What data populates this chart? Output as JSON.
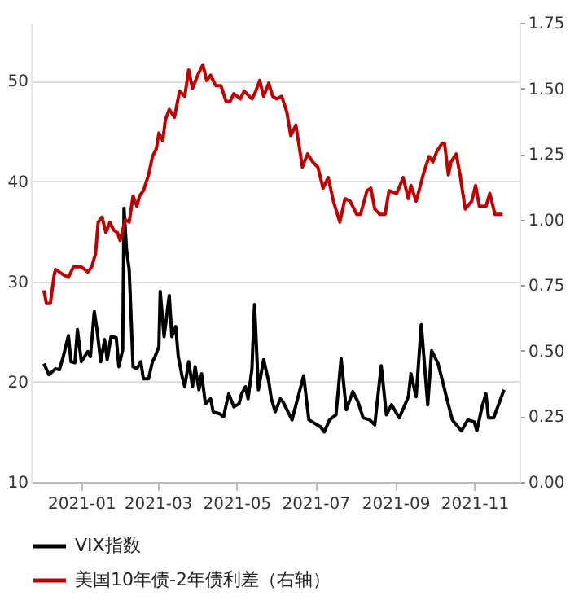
{
  "chart_data": {
    "type": "line",
    "legend": "bottom",
    "grid": "y",
    "line_style": "solid",
    "xlim": [
      "2020-11-23",
      "2021-12-06"
    ],
    "xticks": [
      "2021-01",
      "2021-03",
      "2021-05",
      "2021-07",
      "2021-09",
      "2021-11"
    ],
    "ylim": [
      10,
      55.8
    ],
    "yticks": [
      10,
      20,
      30,
      40,
      50
    ],
    "y2lim": [
      0,
      1.75
    ],
    "y2ticks": [
      {
        "value": 0,
        "label": "0.00"
      },
      0.25,
      {
        "value": 0.5,
        "label": "0.50"
      },
      0.75,
      {
        "value": 1,
        "label": "1.00"
      },
      1.25,
      {
        "value": 1.5,
        "label": "1.50"
      },
      1.75
    ],
    "series": [
      {
        "name": "VIX指数",
        "color": "#000000",
        "x": [
          "2020-12-03",
          "2020-12-07",
          "2020-12-12",
          "2020-12-15",
          "2020-12-18",
          "2020-12-22",
          "2020-12-24",
          "2020-12-27",
          "2020-12-29",
          "2021-01-01",
          "2021-01-06",
          "2021-01-08",
          "2021-01-11",
          "2021-01-13",
          "2021-01-16",
          "2021-01-19",
          "2021-01-21",
          "2021-01-24",
          "2021-01-28",
          "2021-01-30",
          "2021-02-02",
          "2021-02-03",
          "2021-02-05",
          "2021-02-07",
          "2021-02-10",
          "2021-02-13",
          "2021-02-16",
          "2021-02-18",
          "2021-02-22",
          "2021-02-25",
          "2021-02-27",
          "2021-03-02",
          "2021-03-03",
          "2021-03-06",
          "2021-03-10",
          "2021-03-12",
          "2021-03-15",
          "2021-03-17",
          "2021-03-20",
          "2021-03-22",
          "2021-03-25",
          "2021-03-28",
          "2021-03-30",
          "2021-04-02",
          "2021-04-04",
          "2021-04-07",
          "2021-04-11",
          "2021-04-13",
          "2021-04-18",
          "2021-04-21",
          "2021-04-25",
          "2021-04-29",
          "2021-05-03",
          "2021-05-05",
          "2021-05-08",
          "2021-05-10",
          "2021-05-13",
          "2021-05-15",
          "2021-05-18",
          "2021-05-22",
          "2021-05-26",
          "2021-05-28",
          "2021-05-31",
          "2021-06-04",
          "2021-06-06",
          "2021-06-13",
          "2021-06-22",
          "2021-06-26",
          "2021-07-05",
          "2021-07-08",
          "2021-07-12",
          "2021-07-17",
          "2021-07-21",
          "2021-07-25",
          "2021-07-30",
          "2021-08-03",
          "2021-08-07",
          "2021-08-12",
          "2021-08-16",
          "2021-08-21",
          "2021-08-25",
          "2021-08-29",
          "2021-09-04",
          "2021-09-11",
          "2021-09-13",
          "2021-09-17",
          "2021-09-21",
          "2021-09-26",
          "2021-09-29",
          "2021-10-04",
          "2021-10-07",
          "2021-10-11",
          "2021-10-15",
          "2021-10-22",
          "2021-10-27",
          "2021-11-01",
          "2021-11-03",
          "2021-11-07",
          "2021-11-10",
          "2021-11-12",
          "2021-11-16",
          "2021-11-24"
        ],
        "values": [
          21.8,
          20.7,
          21.3,
          21.2,
          22.5,
          24.6,
          22,
          21.9,
          25.2,
          22,
          23,
          22.5,
          27,
          25.3,
          22,
          24.2,
          22.2,
          24.5,
          24.4,
          21.5,
          23.2,
          37.3,
          33.1,
          31.2,
          21.5,
          21.3,
          22,
          20.3,
          20.3,
          22,
          22.5,
          23.5,
          29,
          24.5,
          28.6,
          24.5,
          25.5,
          22.5,
          20.5,
          19.5,
          22,
          19.5,
          21.5,
          19.2,
          20.8,
          17.8,
          18.3,
          17,
          16.8,
          16.5,
          18.8,
          17.5,
          17.8,
          18.8,
          19.5,
          18.3,
          21.3,
          27.7,
          19.2,
          22.2,
          20,
          18.3,
          17,
          18.3,
          18,
          16.2,
          20.6,
          16.2,
          15.5,
          15,
          16.2,
          16.7,
          22.3,
          17.2,
          19,
          18,
          16.4,
          16.2,
          15.7,
          21.6,
          16.7,
          17.7,
          16.4,
          18.5,
          20.8,
          18.5,
          25.7,
          17.7,
          23.1,
          21.8,
          20.3,
          18.2,
          16.2,
          15.1,
          16.2,
          16,
          15.1,
          17.5,
          18.8,
          16.4,
          16.4,
          19.2
        ]
      },
      {
        "name": "美国10年债-2年债利差（右轴）",
        "color": "#c00000",
        "axis": "y2",
        "x": [
          "2020-12-03",
          "2020-12-05",
          "2020-12-08",
          "2020-12-11",
          "2020-12-12",
          "2020-12-18",
          "2020-12-22",
          "2020-12-26",
          "2021-01-01",
          "2021-01-06",
          "2021-01-09",
          "2021-01-12",
          "2021-01-14",
          "2021-01-17",
          "2021-01-20",
          "2021-01-23",
          "2021-01-26",
          "2021-01-29",
          "2021-01-31",
          "2021-02-04",
          "2021-02-07",
          "2021-02-10",
          "2021-02-13",
          "2021-02-15",
          "2021-02-18",
          "2021-02-22",
          "2021-02-25",
          "2021-02-28",
          "2021-03-02",
          "2021-03-05",
          "2021-03-07",
          "2021-03-10",
          "2021-03-14",
          "2021-03-18",
          "2021-03-22",
          "2021-03-25",
          "2021-03-28",
          "2021-04-01",
          "2021-04-05",
          "2021-04-08",
          "2021-04-11",
          "2021-04-15",
          "2021-04-19",
          "2021-04-23",
          "2021-04-26",
          "2021-04-29",
          "2021-05-04",
          "2021-05-07",
          "2021-05-13",
          "2021-05-16",
          "2021-05-19",
          "2021-05-22",
          "2021-05-26",
          "2021-05-29",
          "2021-06-01",
          "2021-06-05",
          "2021-06-09",
          "2021-06-12",
          "2021-06-16",
          "2021-06-21",
          "2021-06-25",
          "2021-06-29",
          "2021-07-03",
          "2021-07-07",
          "2021-07-11",
          "2021-07-15",
          "2021-07-20",
          "2021-07-24",
          "2021-07-28",
          "2021-08-02",
          "2021-08-05",
          "2021-08-10",
          "2021-08-13",
          "2021-08-16",
          "2021-08-20",
          "2021-08-24",
          "2021-08-27",
          "2021-09-02",
          "2021-09-07",
          "2021-09-11",
          "2021-09-13",
          "2021-09-17",
          "2021-09-23",
          "2021-09-27",
          "2021-09-30",
          "2021-10-03",
          "2021-10-07",
          "2021-10-09",
          "2021-10-12",
          "2021-10-14",
          "2021-10-18",
          "2021-10-21",
          "2021-10-25",
          "2021-10-30",
          "2021-11-02",
          "2021-11-05",
          "2021-11-10",
          "2021-11-13",
          "2021-11-17",
          "2021-11-23"
        ],
        "values": [
          0.73,
          0.68,
          0.68,
          0.79,
          0.81,
          0.79,
          0.78,
          0.82,
          0.82,
          0.8,
          0.82,
          0.87,
          0.99,
          1.01,
          0.95,
          0.99,
          0.96,
          0.95,
          0.92,
          1.0,
          0.99,
          1.09,
          1.05,
          1.09,
          1.11,
          1.17,
          1.24,
          1.27,
          1.33,
          1.3,
          1.38,
          1.42,
          1.39,
          1.49,
          1.47,
          1.57,
          1.5,
          1.55,
          1.59,
          1.53,
          1.55,
          1.51,
          1.51,
          1.45,
          1.45,
          1.48,
          1.46,
          1.49,
          1.46,
          1.49,
          1.53,
          1.47,
          1.52,
          1.47,
          1.46,
          1.47,
          1.41,
          1.32,
          1.36,
          1.2,
          1.25,
          1.22,
          1.2,
          1.12,
          1.16,
          1.07,
          0.99,
          1.08,
          1.07,
          1.02,
          1.02,
          1.11,
          1.12,
          1.04,
          1.02,
          1.02,
          1.11,
          1.1,
          1.16,
          1.08,
          1.13,
          1.07,
          1.18,
          1.24,
          1.22,
          1.26,
          1.29,
          1.29,
          1.17,
          1.22,
          1.25,
          1.17,
          1.04,
          1.07,
          1.13,
          1.05,
          1.05,
          1.1,
          1.02,
          1.02
        ]
      }
    ]
  }
}
